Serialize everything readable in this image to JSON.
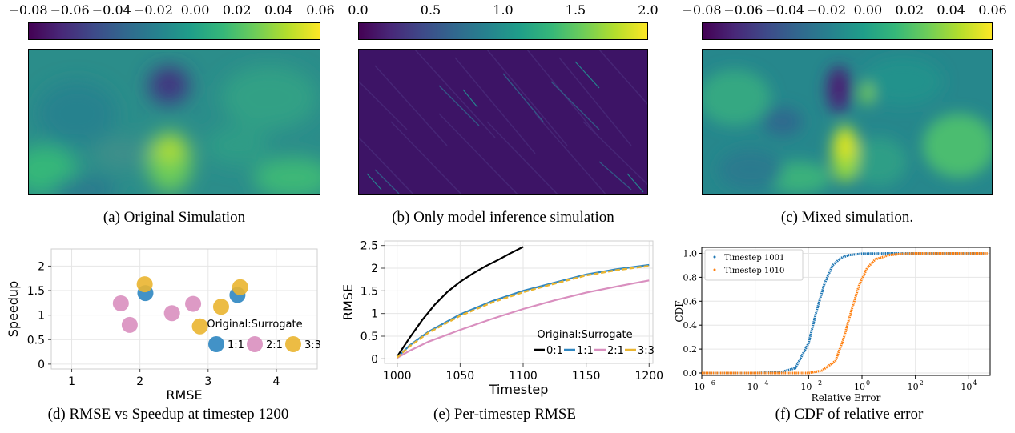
{
  "fields": [
    {
      "caption": "(a) Original Simulation",
      "colorbar_ticks": [
        "−0.08",
        "−0.06",
        "−0.04",
        "−0.02",
        "0.00",
        "0.02",
        "0.04",
        "0.06"
      ],
      "colorbar_range": [
        -0.08,
        0.06
      ],
      "colormap": "viridis"
    },
    {
      "caption": "(b) Only model inference simulation",
      "colorbar_ticks": [
        "0.0",
        "0.5",
        "1.0",
        "1.5",
        "2.0"
      ],
      "colorbar_range": [
        0.0,
        2.0
      ],
      "colormap": "viridis"
    },
    {
      "caption": "(c) Mixed simulation.",
      "colorbar_ticks": [
        "−0.08",
        "−0.06",
        "−0.04",
        "−0.02",
        "0.00",
        "0.02",
        "0.04",
        "0.06"
      ],
      "colorbar_range": [
        -0.08,
        0.06
      ],
      "colormap": "viridis"
    }
  ],
  "chart_data": [
    {
      "type": "scatter",
      "caption": "(d) RMSE vs Speedup at timestep 1200",
      "xlabel": "RMSE",
      "ylabel": "Speedup",
      "xlim": [
        0.7,
        4.6
      ],
      "ylim": [
        -0.1,
        2.35
      ],
      "xticks": [
        "1",
        "2",
        "3",
        "4"
      ],
      "yticks": [
        "0",
        "0.5",
        "1",
        "1.5",
        "2"
      ],
      "grid": true,
      "legend_title": "Original:Surrogate",
      "legend_position": "lower-right",
      "series": [
        {
          "name": "1:1",
          "color": "#2e86c1",
          "points": [
            [
              2.08,
              1.45
            ],
            [
              3.43,
              1.41
            ]
          ]
        },
        {
          "name": "2:1",
          "color": "#d98fbf",
          "points": [
            [
              1.72,
              1.24
            ],
            [
              1.85,
              0.8
            ],
            [
              2.47,
              1.04
            ],
            [
              2.78,
              1.23
            ]
          ]
        },
        {
          "name": "3:3",
          "color": "#eab530",
          "points": [
            [
              2.07,
              1.63
            ],
            [
              2.88,
              0.77
            ],
            [
              3.19,
              1.17
            ],
            [
              3.47,
              1.57
            ]
          ]
        }
      ]
    },
    {
      "type": "line",
      "caption": "(e) Per-timestep RMSE",
      "xlabel": "Timestep",
      "ylabel": "RMSE",
      "xlim": [
        990,
        1203
      ],
      "ylim": [
        -0.1,
        2.6
      ],
      "xticks": [
        "1000",
        "1050",
        "1100",
        "1150",
        "1200"
      ],
      "yticks": [
        "0",
        "0.5",
        "1",
        "1.5",
        "2",
        "2.5"
      ],
      "grid": true,
      "legend_title": "Original:Surrogate",
      "legend_position": "lower-right",
      "series": [
        {
          "name": "0:1",
          "color": "#000000",
          "x": [
            1000,
            1010,
            1020,
            1030,
            1040,
            1050,
            1060,
            1070,
            1080,
            1090,
            1100
          ],
          "y": [
            0.05,
            0.47,
            0.86,
            1.2,
            1.48,
            1.7,
            1.88,
            2.04,
            2.18,
            2.33,
            2.47
          ]
        },
        {
          "name": "1:1",
          "color": "#2e86c1",
          "x": [
            1000,
            1010,
            1025,
            1050,
            1075,
            1100,
            1125,
            1150,
            1175,
            1200
          ],
          "y": [
            0.03,
            0.3,
            0.6,
            0.98,
            1.27,
            1.5,
            1.68,
            1.86,
            1.98,
            2.07
          ]
        },
        {
          "name": "2:1",
          "color": "#d98fbf",
          "x": [
            1000,
            1010,
            1025,
            1050,
            1075,
            1100,
            1125,
            1150,
            1175,
            1200
          ],
          "y": [
            0.02,
            0.18,
            0.38,
            0.64,
            0.88,
            1.1,
            1.29,
            1.46,
            1.6,
            1.73
          ]
        },
        {
          "name": "3:3",
          "color": "#eab530",
          "x": [
            1000,
            1010,
            1025,
            1050,
            1075,
            1100,
            1125,
            1150,
            1175,
            1200
          ],
          "y": [
            0.03,
            0.28,
            0.58,
            0.95,
            1.24,
            1.47,
            1.66,
            1.84,
            1.96,
            2.05
          ]
        }
      ]
    },
    {
      "type": "line",
      "caption": "(f) CDF of relative error",
      "xlabel": "Relative Error",
      "ylabel": "CDF",
      "x_scale": "log",
      "xlim_log10": [
        -6,
        4.8
      ],
      "ylim": [
        -0.02,
        1.05
      ],
      "xticks": [
        {
          "base": "10",
          "exp": "−6"
        },
        {
          "base": "10",
          "exp": "−4"
        },
        {
          "base": "10",
          "exp": "−2"
        },
        {
          "base": "10",
          "exp": "0"
        },
        {
          "base": "10",
          "exp": "2"
        },
        {
          "base": "10",
          "exp": "4"
        }
      ],
      "yticks": [
        "0.0",
        "0.2",
        "0.4",
        "0.6",
        "0.8",
        "1.0"
      ],
      "grid": true,
      "legend_position": "top-left",
      "series": [
        {
          "name": "Timestep 1001",
          "color": "#1f77b4",
          "log10_x": [
            -6,
            -4,
            -3,
            -2.5,
            -2,
            -1.7,
            -1.4,
            -1.1,
            -0.8,
            -0.5,
            0,
            1,
            2,
            4,
            4.6
          ],
          "y": [
            0.0,
            0.0,
            0.01,
            0.04,
            0.25,
            0.52,
            0.75,
            0.9,
            0.96,
            0.985,
            0.997,
            1.0,
            1.0,
            1.0,
            1.0
          ]
        },
        {
          "name": "Timestep 1010",
          "color": "#ff7f0e",
          "log10_x": [
            -6,
            -4,
            -2,
            -1.5,
            -1,
            -0.7,
            -0.4,
            -0.1,
            0.2,
            0.5,
            1,
            1.5,
            2,
            4,
            4.7
          ],
          "y": [
            0.0,
            0.0,
            0.0,
            0.02,
            0.1,
            0.28,
            0.52,
            0.74,
            0.88,
            0.95,
            0.985,
            0.996,
            1.0,
            1.0,
            1.0
          ]
        }
      ]
    }
  ]
}
